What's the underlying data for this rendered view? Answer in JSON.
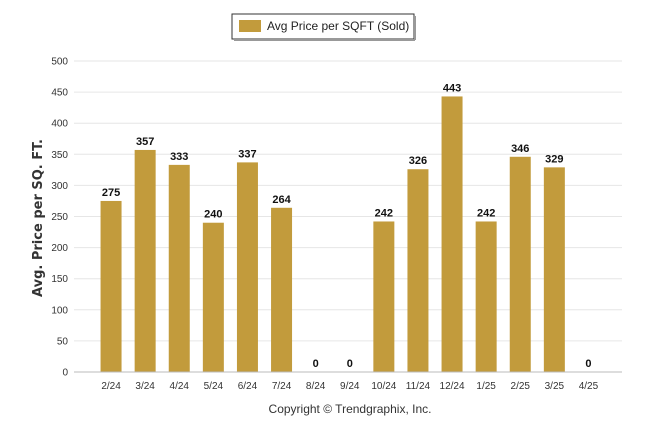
{
  "chart_data": {
    "type": "bar",
    "categories": [
      "2/24",
      "3/24",
      "4/24",
      "5/24",
      "6/24",
      "7/24",
      "8/24",
      "9/24",
      "10/24",
      "11/24",
      "12/24",
      "1/25",
      "2/25",
      "3/25",
      "4/25"
    ],
    "series": [
      {
        "name": "Avg Price per SQFT (Sold)",
        "values": [
          275,
          357,
          333,
          240,
          337,
          264,
          0,
          0,
          242,
          326,
          443,
          242,
          346,
          329,
          0
        ]
      }
    ],
    "data_labels": [
      "275",
      "357",
      "333",
      "240",
      "337",
      "264",
      "0",
      "0",
      "242",
      "326",
      "443",
      "242",
      "346",
      "329",
      "0"
    ],
    "title": "",
    "xlabel": "",
    "ylabel": "Avg. Price per SQ. FT.",
    "ylim": [
      0,
      500
    ],
    "yticks": [
      0,
      50,
      100,
      150,
      200,
      250,
      300,
      350,
      400,
      450,
      500
    ],
    "grid": true,
    "legend_position": "top-center",
    "bar_color": "#C29B3C",
    "grid_color": "#e6e6e6"
  },
  "footer": {
    "copyright": "Copyright © Trendgraphix, Inc."
  }
}
